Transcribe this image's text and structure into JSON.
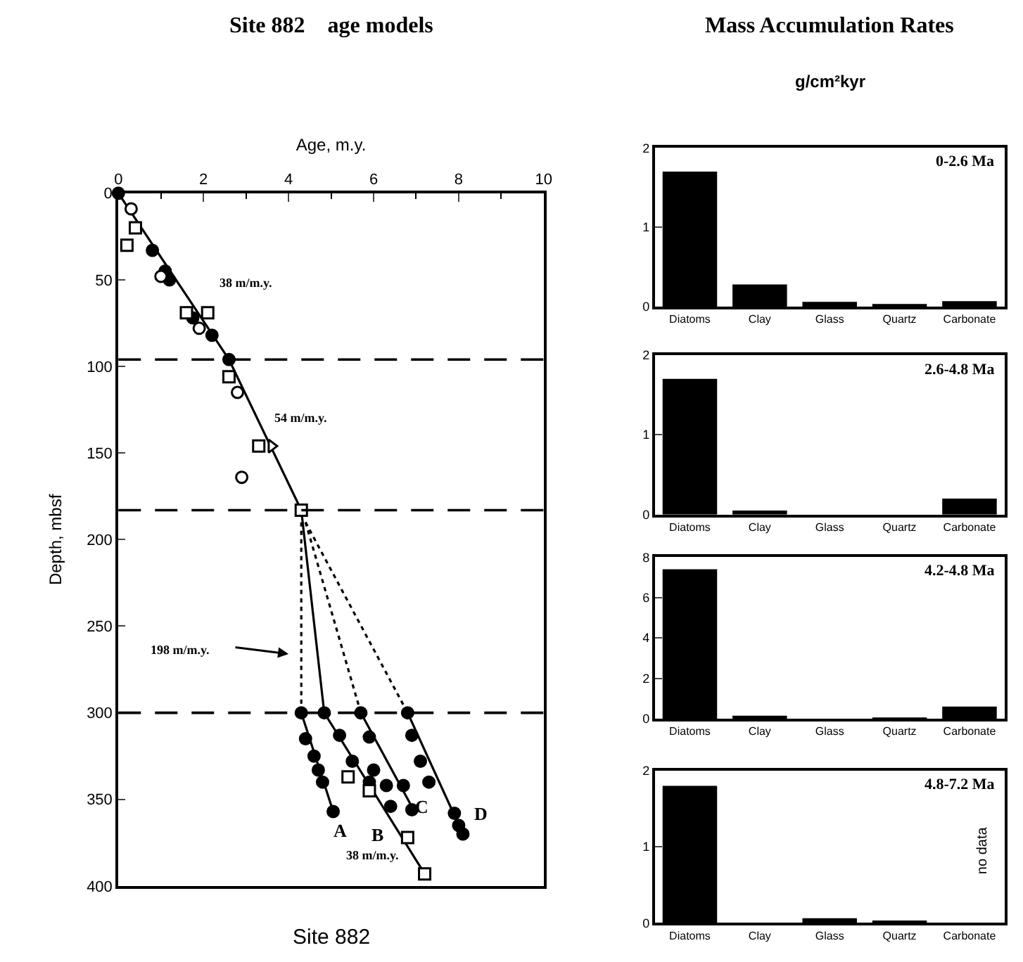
{
  "chart_data": [
    {
      "type": "scatter",
      "title": "Site 882    age models",
      "xlabel": "Age, m.y.",
      "ylabel": "Depth, mbsf",
      "xlim": [
        0,
        10
      ],
      "xticks": [
        0,
        2,
        4,
        6,
        8,
        10
      ],
      "ylim": [
        400,
        0
      ],
      "yticks": [
        0,
        50,
        100,
        150,
        200,
        250,
        300,
        350,
        400
      ],
      "series": [
        {
          "type": "line",
          "color": "#000000",
          "marker": "none",
          "line_style": "solid",
          "x": [
            0,
            2.6,
            4.3,
            4.84,
            7.2
          ],
          "values": [
            0,
            96,
            183,
            300,
            393
          ]
        },
        {
          "type": "line",
          "color": "#000000",
          "marker": "none",
          "line_style": "dotted",
          "x": [
            4.3,
            4.3
          ],
          "values": [
            190,
            300
          ]
        },
        {
          "type": "line",
          "color": "#000000",
          "marker": "none",
          "line_style": "dotted",
          "x": [
            4.4,
            5.7
          ],
          "values": [
            190,
            300
          ]
        },
        {
          "type": "line",
          "color": "#000000",
          "marker": "none",
          "line_style": "dotted",
          "x": [
            4.4,
            6.8
          ],
          "values": [
            190,
            300
          ]
        },
        {
          "type": "line",
          "color": "#000000",
          "marker": "none",
          "line_style": "solid",
          "x": [
            4.3,
            5.05
          ],
          "values": [
            300,
            357
          ]
        },
        {
          "type": "line",
          "color": "#000000",
          "marker": "none",
          "line_style": "solid",
          "x": [
            5.7,
            6.96
          ],
          "values": [
            300,
            357
          ]
        },
        {
          "type": "line",
          "color": "#000000",
          "marker": "none",
          "line_style": "solid",
          "x": [
            6.8,
            8.1
          ],
          "values": [
            300,
            370
          ]
        },
        {
          "type": "scatter",
          "color": "#000000",
          "marker": "circle",
          "x": [
            0,
            0.8,
            1.1,
            1.2,
            1.75,
            2.2,
            2.6,
            4.3,
            4.4,
            4.6,
            4.7,
            4.8,
            5.05,
            4.84,
            5.2,
            5.5,
            5.9,
            6.4,
            5.7,
            5.9,
            6.0,
            6.3,
            6.7,
            6.9,
            6.8,
            6.9,
            7.1,
            7.3,
            7.9,
            8.0,
            8.1
          ],
          "values": [
            0,
            33,
            45,
            50,
            72,
            82,
            96,
            300,
            315,
            325,
            333,
            340,
            357,
            300,
            313,
            328,
            340,
            354,
            300,
            314,
            333,
            342,
            342,
            356,
            300,
            313,
            328,
            340,
            358,
            365,
            370
          ]
        },
        {
          "type": "scatter",
          "color": "#ffffff",
          "marker": "circle",
          "x": [
            0.3,
            1.0,
            1.9,
            2.8,
            2.9
          ],
          "values": [
            9,
            48,
            78,
            115,
            164
          ]
        },
        {
          "type": "scatter",
          "color": "#ffffff",
          "marker": "square",
          "x": [
            0.4,
            0.2,
            1.6,
            2.1,
            2.6,
            3.3,
            4.3,
            5.4,
            5.9,
            6.8,
            7.2
          ],
          "values": [
            20,
            30,
            69,
            69,
            106,
            146,
            183,
            337,
            345,
            372,
            393
          ]
        },
        {
          "type": "scatter",
          "color": "#ffffff",
          "marker": "triangle",
          "x": [
            3.6
          ],
          "values": [
            146
          ]
        }
      ],
      "ref_lines": [
        {
          "axis": "y",
          "value": 96,
          "line_style": "dashed",
          "color": "#000000"
        },
        {
          "axis": "y",
          "value": 183,
          "line_style": "dashed",
          "color": "#000000"
        },
        {
          "axis": "y",
          "value": 300,
          "line_style": "dashed",
          "color": "#000000"
        }
      ],
      "annotations": [
        "38 m/m.y.",
        "54 m/m.y.",
        "198 m/m.y.",
        "A",
        "B",
        "C",
        "D",
        "38 m/m.y.",
        "Site 882"
      ]
    },
    {
      "type": "bar",
      "title": "Mass Accumulation Rates",
      "subtitle": "g/cm²kyr",
      "categories": [
        "Diatoms",
        "Clay",
        "Glass",
        "Quartz",
        "Carbonate"
      ],
      "values": [
        1.7,
        0.28,
        0.06,
        0.03,
        0.07
      ],
      "color": "#000000",
      "ylim": [
        0,
        2
      ],
      "yticks": [
        0,
        1,
        2
      ],
      "annotations": [
        "0-2.6 Ma"
      ]
    },
    {
      "type": "bar",
      "categories": [
        "Diatoms",
        "Clay",
        "Glass",
        "Quartz",
        "Carbonate"
      ],
      "values": [
        1.7,
        0.05,
        0.0,
        0.0,
        0.2
      ],
      "color": "#000000",
      "ylim": [
        0,
        2
      ],
      "yticks": [
        0,
        1,
        2
      ],
      "annotations": [
        "2.6-4.8 Ma"
      ]
    },
    {
      "type": "bar",
      "categories": [
        "Diatoms",
        "Clay",
        "Glass",
        "Quartz",
        "Carbonate"
      ],
      "values": [
        7.4,
        0.15,
        0.0,
        0.05,
        0.6
      ],
      "color": "#000000",
      "ylim": [
        0,
        8
      ],
      "yticks": [
        0,
        2,
        4,
        6,
        8
      ],
      "annotations": [
        "4.2-4.8 Ma"
      ]
    },
    {
      "type": "bar",
      "categories": [
        "Diatoms",
        "Clay",
        "Glass",
        "Quartz",
        "Carbonate"
      ],
      "values": [
        1.8,
        0.0,
        0.06,
        0.03,
        null
      ],
      "color": "#000000",
      "ylim": [
        0,
        2
      ],
      "yticks": [
        0,
        1,
        2
      ],
      "annotations": [
        "4.8-7.2 Ma",
        "no data"
      ]
    }
  ]
}
